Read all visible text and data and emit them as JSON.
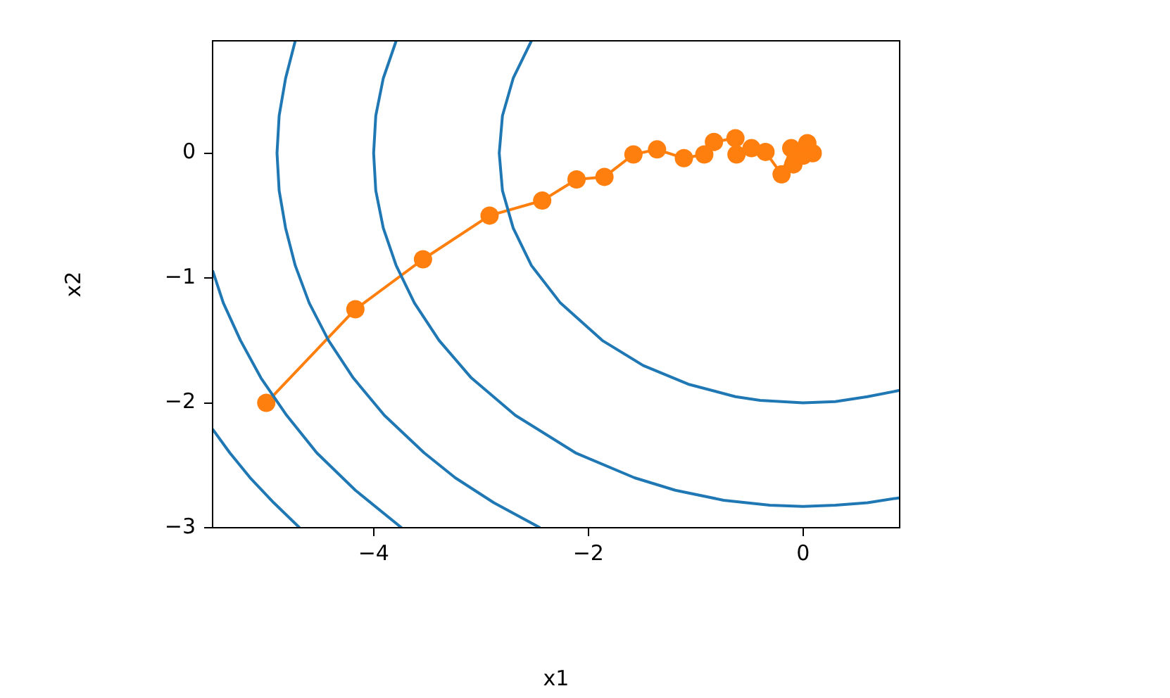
{
  "chart_data": {
    "type": "line",
    "xlabel": "x1",
    "ylabel": "x2",
    "xlim": [
      -5.5,
      0.9
    ],
    "ylim": [
      -3,
      0.9
    ],
    "xticks": [
      -4,
      -2,
      0
    ],
    "yticks": [
      -3,
      -2,
      -1,
      0
    ],
    "grid": false,
    "legend": false,
    "series": [
      {
        "type": "line",
        "color": "#1f77b4",
        "marker": "none",
        "x": [
          -2.53,
          -2.7,
          -2.8,
          -2.83,
          -2.8,
          -2.7,
          -2.53,
          -2.26,
          -1.87,
          -1.49,
          -1.07,
          -0.63,
          -0.4,
          0,
          0.3,
          0.6,
          0.9
        ],
        "values": [
          0.9,
          0.6,
          0.3,
          0,
          -0.3,
          -0.6,
          -0.9,
          -1.2,
          -1.5,
          -1.7,
          -1.85,
          -1.95,
          -1.98,
          -2.0,
          -1.99,
          -1.95,
          -1.9
        ]
      },
      {
        "type": "line",
        "color": "#1f77b4",
        "marker": "none",
        "x": [
          -3.79,
          -3.91,
          -3.98,
          -4.0,
          -3.98,
          -3.91,
          -3.79,
          -3.62,
          -3.39,
          -3.09,
          -2.68,
          -2.12,
          -1.57,
          -1.19,
          -0.74,
          -0.31,
          0,
          0.3,
          0.6,
          0.9
        ],
        "values": [
          0.9,
          0.6,
          0.3,
          0,
          -0.3,
          -0.6,
          -0.9,
          -1.2,
          -1.5,
          -1.8,
          -2.1,
          -2.4,
          -2.6,
          -2.7,
          -2.78,
          -2.82,
          -2.83,
          -2.82,
          -2.8,
          -2.76
        ]
      },
      {
        "type": "line",
        "color": "#1f77b4",
        "marker": "none",
        "x": [
          -4.73,
          -4.82,
          -4.88,
          -4.9,
          -4.88,
          -4.82,
          -4.73,
          -4.6,
          -4.42,
          -4.19,
          -3.9,
          -3.53,
          -3.24,
          -2.88,
          -2.45
        ],
        "values": [
          0.9,
          0.6,
          0.3,
          0,
          -0.3,
          -0.6,
          -0.9,
          -1.2,
          -1.5,
          -1.8,
          -2.1,
          -2.4,
          -2.6,
          -2.8,
          -3.0
        ]
      },
      {
        "type": "line",
        "color": "#1f77b4",
        "marker": "none",
        "x": [
          -5.5,
          -5.4,
          -5.24,
          -5.05,
          -4.81,
          -4.53,
          -4.17,
          -3.74
        ],
        "values": [
          -0.94,
          -1.2,
          -1.5,
          -1.8,
          -2.1,
          -2.4,
          -2.7,
          -3.0
        ]
      },
      {
        "type": "line",
        "color": "#1f77b4",
        "marker": "none",
        "x": [
          -5.5,
          -5.34,
          -5.15,
          -4.93,
          -4.69
        ],
        "values": [
          -2.21,
          -2.4,
          -2.6,
          -2.8,
          -3.0
        ]
      },
      {
        "type": "line",
        "color": "#ff7f0e",
        "marker": "circle",
        "x": [
          -5.0,
          -4.17,
          -3.54,
          -2.92,
          -2.43,
          -2.11,
          -1.85,
          -1.58,
          -1.36,
          -1.11,
          -0.92,
          -0.83,
          -0.63,
          -0.62,
          -0.48,
          -0.35,
          -0.2,
          -0.11,
          0.04,
          -0.09,
          0.09,
          0
        ],
        "values": [
          -2.0,
          -1.25,
          -0.85,
          -0.5,
          -0.38,
          -0.21,
          -0.19,
          -0.01,
          0.03,
          -0.04,
          -0.01,
          0.09,
          0.12,
          -0.01,
          0.04,
          0.01,
          -0.17,
          0.04,
          0.08,
          -0.09,
          0.0,
          -0.02
        ]
      }
    ]
  }
}
